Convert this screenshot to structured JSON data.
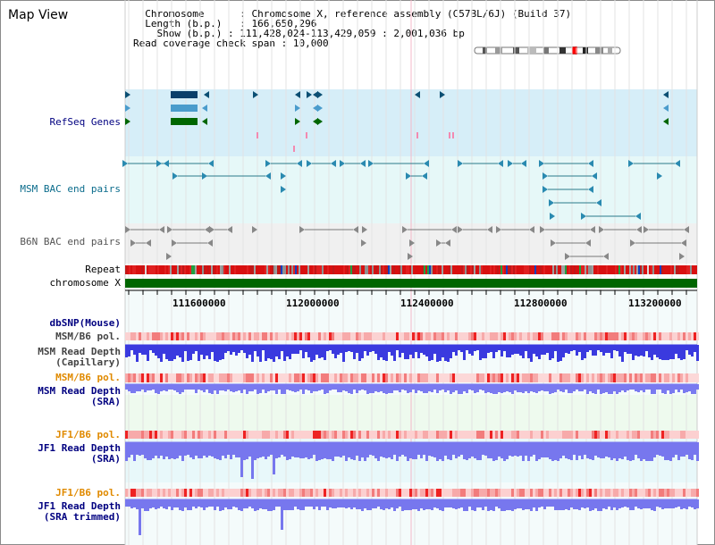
{
  "app": {
    "title": "Map View"
  },
  "header": {
    "chromosome_label": "Chromosome",
    "chromosome_value": "Chromosome X, reference assembly (C57BL/6J) (Build 37)",
    "length_label": "Length (b.p.)",
    "length_value": "166,650,296",
    "show_label": "Show (b.p.)",
    "show_value": "111,428,024-113,429,059 : 2,001,036 bp",
    "coverage_label": "Read coverage check span",
    "coverage_value": "10,000"
  },
  "tracks": {
    "refseq": "RefSeq Genes",
    "msm_bac": "MSM BAC end pairs",
    "b6n_bac": "B6N BAC end pairs",
    "repeat": "Repeat",
    "chromosome": "chromosome X",
    "dbsnp": "dbSNP(Mouse)",
    "msm_b6_pol_1": "MSM/B6 pol.",
    "msm_read_depth_cap_1": "MSM Read Depth",
    "msm_read_depth_cap_2": "(Capillary)",
    "msm_b6_pol_2": "MSM/B6 pol.",
    "msm_read_depth_sra_1": "MSM Read Depth",
    "msm_read_depth_sra_2": "(SRA)",
    "jf1_b6_pol_1": "JF1/B6 pol.",
    "jf1_read_depth_sra_1": "JF1 Read Depth",
    "jf1_read_depth_sra_2": "(SRA)",
    "jf1_b6_pol_2": "JF1/B6 pol.",
    "jf1_read_depth_trim_1": "JF1 Read Depth",
    "jf1_read_depth_trim_2": "(SRA trimmed)"
  },
  "axis": {
    "ticks": [
      "111600000",
      "112000000",
      "112400000",
      "112800000",
      "113200000"
    ]
  },
  "colors": {
    "refseq_bg": "#d6eef8",
    "bac_bg": "#e6f8f8",
    "b6n_bg": "#f0f0f0",
    "label_blue": "#000080",
    "label_teal": "#0b6c8c",
    "label_orange": "#e08a00",
    "label_gray": "#444444",
    "chromosome_green": "#006600",
    "depth_blue": "#3333dd",
    "pol_red": "#ee3333"
  }
}
